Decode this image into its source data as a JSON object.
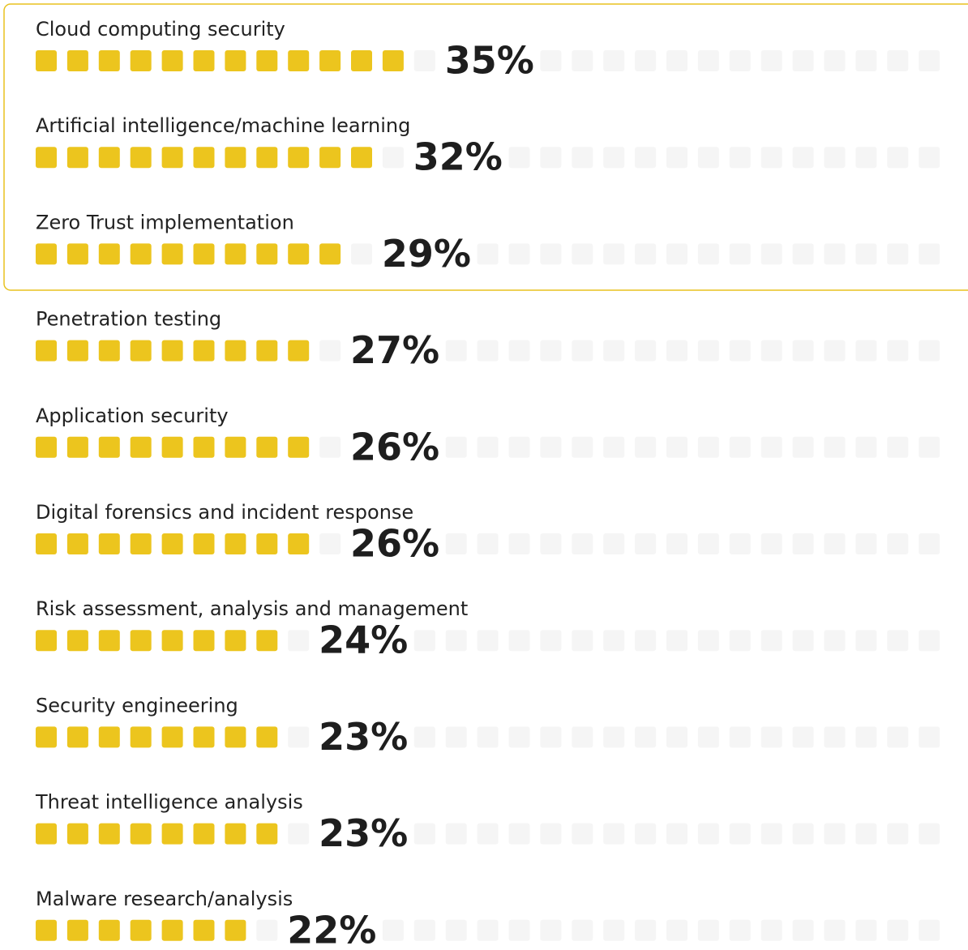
{
  "chart_data": {
    "type": "pictogram-bar",
    "categories": [
      "Cloud computing security",
      "Artificial intelligence/machine learning",
      "Zero Trust implementation",
      "Penetration testing",
      "Application security",
      "Digital forensics and incident response",
      "Risk assessment, analysis and management",
      "Security engineering",
      "Threat intelligence analysis",
      "Malware research/analysis"
    ],
    "values": [
      35,
      32,
      29,
      27,
      26,
      26,
      24,
      23,
      23,
      22
    ],
    "value_labels": [
      "35%",
      "32%",
      "29%",
      "27%",
      "26%",
      "26%",
      "24%",
      "23%",
      "23%",
      "22%"
    ],
    "color": "#ecc51e"
  }
}
